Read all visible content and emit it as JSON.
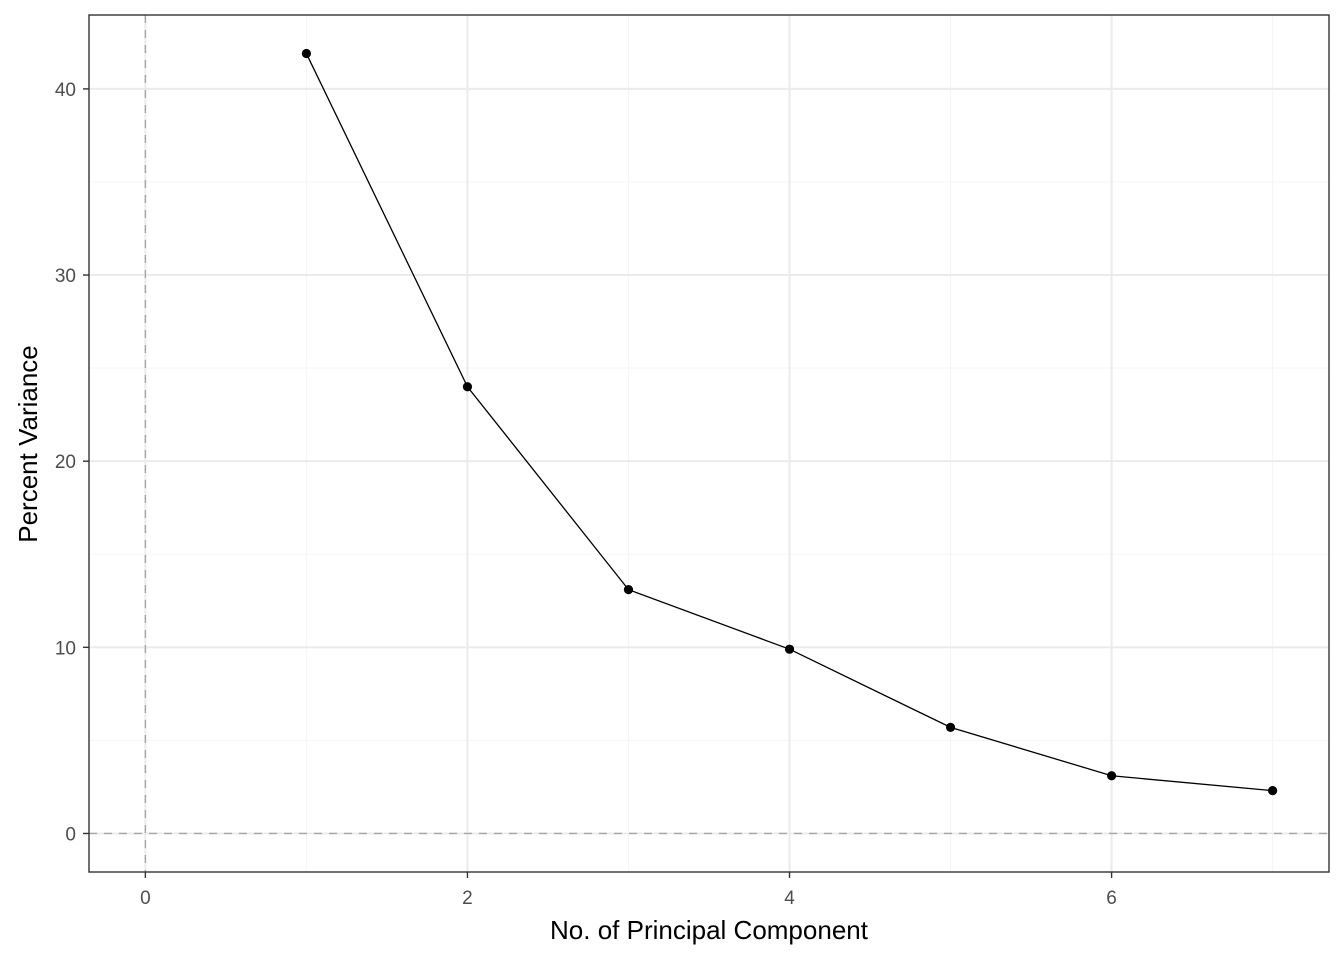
{
  "chart_data": {
    "type": "line",
    "title": "",
    "xlabel": "No. of Principal Component",
    "ylabel": "Percent Variance",
    "xlim": [
      -0.35,
      7.35
    ],
    "ylim": [
      -2.07,
      43.97
    ],
    "x_ticks": [
      0,
      2,
      4,
      6
    ],
    "y_ticks": [
      0,
      10,
      20,
      30,
      40
    ],
    "x_minor": [
      1,
      3,
      5,
      7
    ],
    "y_minor": [
      5,
      15,
      25,
      35
    ],
    "grid": true,
    "reference_lines": [
      {
        "axis": "x",
        "value": 0,
        "style": "dashed"
      },
      {
        "axis": "y",
        "value": 0,
        "style": "dashed"
      }
    ],
    "series": [
      {
        "x": [
          1,
          2,
          3,
          4,
          5,
          6,
          7
        ],
        "values": [
          41.9,
          24.0,
          13.1,
          9.9,
          5.7,
          3.1,
          2.3
        ]
      }
    ],
    "colors": {
      "line": "#000000",
      "point": "#000000",
      "grid_major": "#ebebeb",
      "grid_minor": "#f5f5f5",
      "reference": "#a6a6a6",
      "panel_border": "#333333"
    }
  }
}
